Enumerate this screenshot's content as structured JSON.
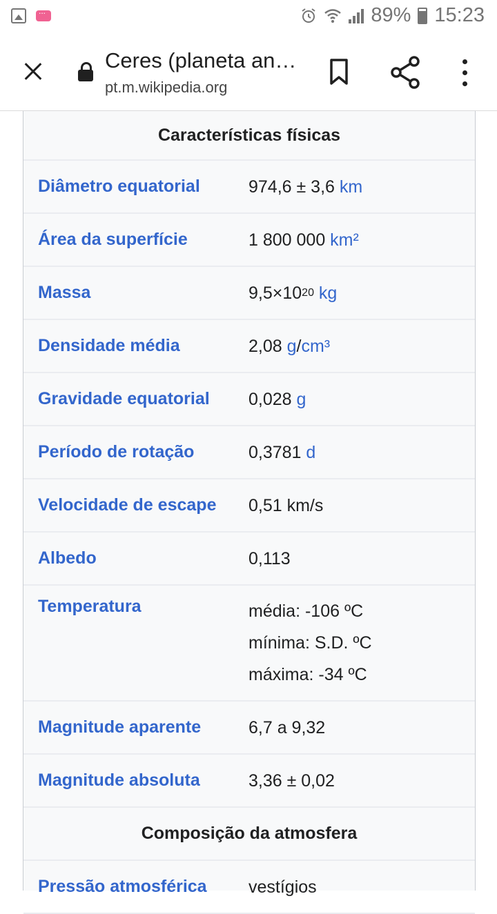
{
  "status_bar": {
    "battery": "89%",
    "time": "15:23"
  },
  "app_bar": {
    "title": "Ceres (planeta an…",
    "url": "pt.m.wikipedia.org"
  },
  "infobox": {
    "section_physical": "Características físicas",
    "rows": [
      {
        "label": "Diâmetro equatorial",
        "value": "974,6 ± 3,6 ",
        "unit": "km"
      },
      {
        "label": "Área da superfície",
        "value": "1 800 000 ",
        "unit": "km²"
      },
      {
        "label": "Massa",
        "value": "9,5×10",
        "sup": "20",
        "unit": "kg"
      },
      {
        "label": "Densidade média",
        "value": "2,08 ",
        "unit_a": "g",
        "sep": "/",
        "unit_b": "cm³"
      },
      {
        "label": "Gravidade equatorial",
        "value": "0,028 ",
        "unit": "g"
      },
      {
        "label": "Período de rotação",
        "value": "0,3781 ",
        "unit": "d"
      },
      {
        "label": "Velocidade de escape",
        "value": "0,51 km/s"
      },
      {
        "label": "Albedo",
        "value": "0,113"
      },
      {
        "label": "Temperatura",
        "lines": [
          "média: -106 ºC",
          "mínima: S.D. ºC",
          "máxima: -34 ºC"
        ]
      },
      {
        "label": "Magnitude aparente",
        "value": "6,7 a 9,32"
      },
      {
        "label": "Magnitude absoluta",
        "value": "3,36 ± 0,02"
      }
    ],
    "section_atmosphere": "Composição da atmosfera",
    "atmosphere_row": {
      "label": "Pressão atmosférica",
      "value": "vestígios"
    }
  }
}
